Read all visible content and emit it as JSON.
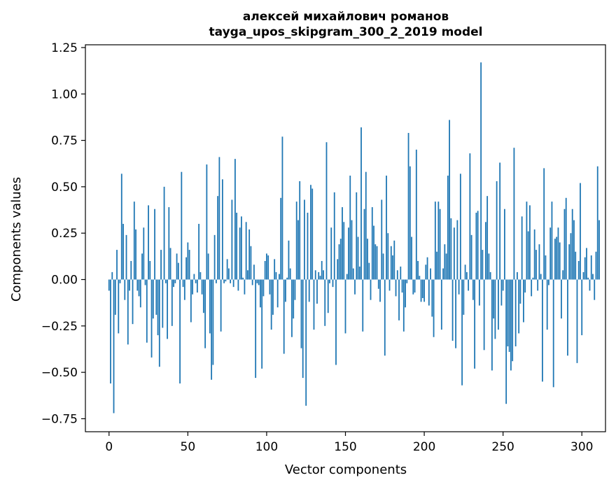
{
  "chart_data": {
    "type": "bar",
    "title": [
      "алексей михайлович романов",
      "tayga_upos_skipgram_300_2_2019 model"
    ],
    "xlabel": "Vector components",
    "ylabel": "Components values",
    "xlim": [
      -15,
      315
    ],
    "ylim": [
      -0.82,
      1.265
    ],
    "xticks": [
      0,
      50,
      100,
      150,
      200,
      250,
      300
    ],
    "xtick_labels": [
      "0",
      "50",
      "100",
      "150",
      "200",
      "250",
      "300"
    ],
    "yticks": [
      -0.75,
      -0.5,
      -0.25,
      0.0,
      0.25,
      0.5,
      0.75,
      1.0,
      1.25
    ],
    "ytick_labels": [
      "−0.75",
      "−0.50",
      "−0.25",
      "0.00",
      "0.25",
      "0.50",
      "0.75",
      "1.00",
      "1.25"
    ],
    "bar_color": "#1f77b4",
    "grid": false,
    "values": [
      -0.06,
      -0.56,
      0.04,
      -0.72,
      -0.19,
      0.16,
      -0.29,
      -0.02,
      0.57,
      0.3,
      -0.11,
      0.24,
      -0.35,
      -0.06,
      0.1,
      -0.24,
      0.42,
      0.27,
      -0.06,
      -0.09,
      -0.15,
      0.14,
      0.28,
      -0.03,
      -0.34,
      0.4,
      0.1,
      -0.42,
      -0.21,
      0.38,
      -0.19,
      -0.3,
      -0.47,
      0.16,
      -0.26,
      0.5,
      -0.02,
      -0.32,
      0.39,
      0.17,
      -0.25,
      -0.04,
      -0.02,
      0.14,
      0.09,
      -0.56,
      0.58,
      -0.04,
      -0.11,
      0.12,
      0.2,
      0.16,
      -0.23,
      -0.08,
      0.03,
      -0.02,
      -0.07,
      0.3,
      0.04,
      -0.08,
      -0.18,
      -0.37,
      0.62,
      0.14,
      -0.29,
      -0.54,
      -0.46,
      0.24,
      -0.02,
      0.45,
      0.66,
      -0.28,
      0.54,
      -0.02,
      -0.01,
      0.11,
      0.06,
      -0.02,
      0.43,
      -0.04,
      0.65,
      0.36,
      -0.06,
      0.28,
      0.34,
      0.01,
      -0.08,
      0.31,
      0.05,
      0.27,
      0.18,
      -0.03,
      0.08,
      -0.53,
      -0.02,
      -0.03,
      -0.15,
      -0.48,
      -0.09,
      0.1,
      0.14,
      0.13,
      -0.08,
      -0.27,
      -0.19,
      0.11,
      0.04,
      -0.15,
      0.03,
      0.44,
      0.77,
      -0.4,
      -0.12,
      0.01,
      0.21,
      0.06,
      -0.31,
      -0.21,
      -0.11,
      0.42,
      0.32,
      0.53,
      -0.37,
      -0.53,
      0.43,
      -0.68,
      0.36,
      -0.12,
      0.51,
      0.49,
      -0.27,
      0.05,
      -0.13,
      0.04,
      0.02,
      0.1,
      0.05,
      -0.25,
      0.74,
      -0.18,
      -0.02,
      0.28,
      -0.04,
      0.47,
      -0.46,
      0.11,
      0.19,
      0.22,
      0.39,
      0.31,
      -0.29,
      0.03,
      0.28,
      0.56,
      0.32,
      0.06,
      -0.08,
      0.47,
      0.23,
      0.07,
      0.82,
      -0.28,
      0.38,
      0.58,
      0.22,
      0.09,
      -0.11,
      0.39,
      0.29,
      0.19,
      0.18,
      -0.05,
      -0.12,
      0.43,
      0.14,
      -0.41,
      0.56,
      0.25,
      -0.06,
      0.18,
      0.13,
      0.21,
      -0.09,
      0.05,
      -0.22,
      0.07,
      -0.07,
      -0.28,
      -0.15,
      -0.02,
      0.79,
      0.61,
      0.23,
      -0.08,
      -0.07,
      0.7,
      0.1,
      0.02,
      -0.12,
      -0.1,
      -0.12,
      0.08,
      0.12,
      -0.14,
      0.06,
      -0.2,
      -0.31,
      0.42,
      0.15,
      0.42,
      0.38,
      -0.27,
      0.06,
      0.19,
      0.14,
      0.56,
      0.86,
      0.33,
      -0.33,
      0.28,
      -0.37,
      0.32,
      -0.08,
      0.57,
      -0.57,
      -0.19,
      0.08,
      0.04,
      -0.06,
      0.68,
      0.24,
      -0.11,
      -0.48,
      0.36,
      0.37,
      -0.14,
      1.17,
      0.16,
      -0.38,
      0.31,
      0.45,
      0.14,
      0.04,
      -0.49,
      -0.21,
      -0.32,
      0.53,
      -0.27,
      0.63,
      -0.14,
      -0.06,
      0.38,
      -0.67,
      -0.36,
      -0.39,
      -0.49,
      -0.44,
      0.71,
      -0.36,
      0.04,
      -0.29,
      -0.13,
      0.34,
      -0.23,
      -0.07,
      0.42,
      0.26,
      0.4,
      -0.09,
      0.01,
      0.27,
      0.16,
      -0.06,
      0.19,
      0.03,
      -0.55,
      0.6,
      0.13,
      -0.27,
      -0.03,
      0.28,
      0.42,
      -0.58,
      0.22,
      0.23,
      0.28,
      0.2,
      -0.21,
      0.05,
      0.38,
      0.44,
      -0.41,
      0.19,
      0.25,
      0.38,
      0.32,
      0.15,
      -0.45,
      0.1,
      0.52,
      -0.3,
      0.04,
      0.12,
      0.17,
      0.01,
      -0.06,
      0.13,
      0.03,
      -0.11,
      0.15,
      0.61,
      0.32
    ]
  }
}
